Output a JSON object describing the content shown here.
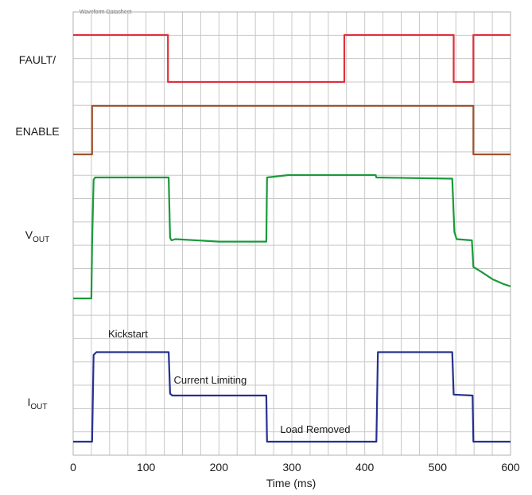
{
  "header": "Waveform Datasheet",
  "chart_data": {
    "type": "line",
    "title": "",
    "xlabel": "Time (ms)",
    "xlim": [
      0,
      600
    ],
    "x_ticks": [
      0,
      100,
      200,
      300,
      400,
      500,
      600
    ],
    "grid": true,
    "series": [
      {
        "name": "FAULT/",
        "label_parts": [
          {
            "text": "FAULT/",
            "sub": ""
          }
        ],
        "color": "#e0303a",
        "levels": [
          "high",
          "low"
        ],
        "points": [
          [
            0,
            1
          ],
          [
            130,
            1
          ],
          [
            130,
            0
          ],
          [
            372,
            0
          ],
          [
            372,
            1
          ],
          [
            522,
            1
          ],
          [
            522,
            0
          ],
          [
            549,
            0
          ],
          [
            549,
            1
          ],
          [
            600,
            1
          ]
        ]
      },
      {
        "name": "ENABLE",
        "label_parts": [
          {
            "text": "ENABLE",
            "sub": ""
          }
        ],
        "color": "#a0522d",
        "levels": [
          "low",
          "high"
        ],
        "points": [
          [
            0,
            0
          ],
          [
            26,
            0
          ],
          [
            26,
            1
          ],
          [
            549,
            1
          ],
          [
            549,
            0
          ],
          [
            600,
            0
          ]
        ]
      },
      {
        "name": "VOUT",
        "label_parts": [
          {
            "text": "V",
            "sub": "OUT"
          }
        ],
        "color": "#1a9a3a",
        "points": [
          [
            0,
            0.0
          ],
          [
            25,
            0.0
          ],
          [
            26,
            0.45
          ],
          [
            28,
            0.98
          ],
          [
            30,
            1.0
          ],
          [
            131,
            1.0
          ],
          [
            133,
            0.5
          ],
          [
            135,
            0.48
          ],
          [
            140,
            0.49
          ],
          [
            200,
            0.47
          ],
          [
            265,
            0.47
          ],
          [
            266,
            1.0
          ],
          [
            295,
            1.02
          ],
          [
            415,
            1.02
          ],
          [
            416,
            1.0
          ],
          [
            520,
            0.99
          ],
          [
            523,
            0.55
          ],
          [
            526,
            0.49
          ],
          [
            547,
            0.48
          ],
          [
            549,
            0.26
          ],
          [
            560,
            0.22
          ],
          [
            575,
            0.16
          ],
          [
            590,
            0.12
          ],
          [
            600,
            0.1
          ]
        ]
      },
      {
        "name": "IOUT",
        "label_parts": [
          {
            "text": "I",
            "sub": "OUT"
          }
        ],
        "color": "#26308f",
        "points": [
          [
            0,
            0
          ],
          [
            26,
            0
          ],
          [
            28,
            0.94
          ],
          [
            32,
            0.97
          ],
          [
            131,
            0.97
          ],
          [
            133,
            0.52
          ],
          [
            136,
            0.5
          ],
          [
            265,
            0.5
          ],
          [
            266,
            0
          ],
          [
            416,
            0
          ],
          [
            418,
            0.97
          ],
          [
            520,
            0.97
          ],
          [
            522,
            0.51
          ],
          [
            548,
            0.5
          ],
          [
            549,
            0
          ],
          [
            600,
            0
          ]
        ]
      }
    ],
    "annotations": [
      {
        "text": "Kickstart",
        "series": "IOUT",
        "x": 48
      },
      {
        "text": "Current Limiting",
        "series": "IOUT",
        "x": 138
      },
      {
        "text": "Load Removed",
        "series": "IOUT",
        "x": 284
      }
    ]
  }
}
